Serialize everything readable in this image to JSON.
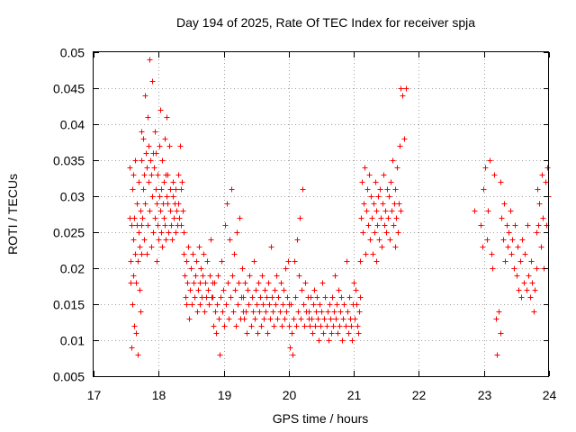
{
  "chart_data": {
    "type": "scatter",
    "title": "Day 194 of 2025, Rate Of TEC Index for receiver spja",
    "xlabel": "GPS time / hours",
    "ylabel": "ROTI / TECUs",
    "xlim": [
      17,
      24
    ],
    "ylim": [
      0.005,
      0.05
    ],
    "grid": true,
    "marker": "+",
    "color": "#ff0000",
    "xticks": [
      "17",
      "18",
      "19",
      "20",
      "21",
      "22",
      "23",
      "24"
    ],
    "yticks": [
      "0.005",
      "0.01",
      "0.015",
      "0.02",
      "0.025",
      "0.03",
      "0.035",
      "0.04",
      "0.045",
      "0.05"
    ],
    "segments": [
      {
        "x_start": 17.55,
        "x_end": 17.74,
        "y": [
          0.027,
          0.034,
          0.021,
          0.018,
          0.009,
          0.026,
          0.031,
          0.015,
          0.024,
          0.033,
          0.019,
          0.012,
          0.027,
          0.022,
          0.035,
          0.018,
          0.011,
          0.026,
          0.029,
          0.021,
          0.008,
          0.025,
          0.032,
          0.017,
          0.023,
          0.028,
          0.014,
          0.026,
          0.039,
          0.022
        ]
      },
      {
        "x_start": 17.74,
        "x_end": 18.12,
        "y": [
          0.035,
          0.027,
          0.031,
          0.038,
          0.024,
          0.033,
          0.044,
          0.029,
          0.036,
          0.022,
          0.034,
          0.041,
          0.026,
          0.032,
          0.037,
          0.049,
          0.028,
          0.035,
          0.033,
          0.023,
          0.03,
          0.046,
          0.036,
          0.025,
          0.034,
          0.039,
          0.027,
          0.031,
          0.036,
          0.021,
          0.029,
          0.033,
          0.026,
          0.024,
          0.037,
          0.03,
          0.028,
          0.042,
          0.025,
          0.031,
          0.035,
          0.023,
          0.029,
          0.032,
          0.027,
          0.038,
          0.026,
          0.033,
          0.024,
          0.03
        ]
      },
      {
        "x_start": 18.12,
        "x_end": 18.38,
        "y": [
          0.041,
          0.029,
          0.033,
          0.025,
          0.037,
          0.028,
          0.031,
          0.026,
          0.024,
          0.03,
          0.032,
          0.027,
          0.029,
          0.025,
          0.031,
          0.028,
          0.026,
          0.033,
          0.029,
          0.027,
          0.037,
          0.031,
          0.026,
          0.032,
          0.028,
          0.025
        ]
      },
      {
        "x_start": 18.38,
        "x_end": 18.82,
        "y": [
          0.022,
          0.019,
          0.016,
          0.021,
          0.015,
          0.018,
          0.023,
          0.013,
          0.017,
          0.02,
          0.015,
          0.022,
          0.018,
          0.016,
          0.019,
          0.021,
          0.014,
          0.017,
          0.023,
          0.015,
          0.018,
          0.02,
          0.016,
          0.019,
          0.022,
          0.014,
          0.018,
          0.016,
          0.021,
          0.017,
          0.015,
          0.019,
          0.024,
          0.016,
          0.018
        ]
      },
      {
        "x_start": 18.82,
        "x_end": 19.3,
        "y": [
          0.016,
          0.012,
          0.018,
          0.014,
          0.011,
          0.015,
          0.019,
          0.013,
          0.008,
          0.016,
          0.021,
          0.014,
          0.017,
          0.012,
          0.026,
          0.015,
          0.029,
          0.018,
          0.013,
          0.024,
          0.016,
          0.031,
          0.019,
          0.014,
          0.022,
          0.017,
          0.012,
          0.025,
          0.015,
          0.018,
          0.027,
          0.013,
          0.016,
          0.02,
          0.014
        ]
      },
      {
        "x_start": 19.3,
        "x_end": 20.0,
        "y": [
          0.016,
          0.013,
          0.018,
          0.014,
          0.011,
          0.017,
          0.015,
          0.019,
          0.012,
          0.016,
          0.014,
          0.021,
          0.013,
          0.017,
          0.015,
          0.011,
          0.018,
          0.014,
          0.016,
          0.012,
          0.019,
          0.015,
          0.013,
          0.017,
          0.014,
          0.016,
          0.011,
          0.018,
          0.015,
          0.013,
          0.023,
          0.016,
          0.014,
          0.012,
          0.017,
          0.015,
          0.019,
          0.013,
          0.016,
          0.014,
          0.018,
          0.012,
          0.015,
          0.017,
          0.013,
          0.02,
          0.014,
          0.016,
          0.021,
          0.015
        ]
      },
      {
        "x_start": 20.0,
        "x_end": 20.3,
        "y": [
          0.012,
          0.009,
          0.015,
          0.011,
          0.008,
          0.013,
          0.021,
          0.016,
          0.012,
          0.024,
          0.014,
          0.019,
          0.027,
          0.013,
          0.017,
          0.031,
          0.015,
          0.012,
          0.018,
          0.014,
          0.016,
          0.013
        ]
      },
      {
        "x_start": 20.3,
        "x_end": 21.1,
        "y": [
          0.014,
          0.012,
          0.016,
          0.013,
          0.011,
          0.015,
          0.017,
          0.012,
          0.014,
          0.016,
          0.013,
          0.01,
          0.015,
          0.012,
          0.014,
          0.018,
          0.011,
          0.013,
          0.016,
          0.012,
          0.014,
          0.01,
          0.015,
          0.013,
          0.011,
          0.016,
          0.012,
          0.014,
          0.019,
          0.013,
          0.015,
          0.011,
          0.017,
          0.012,
          0.014,
          0.016,
          0.01,
          0.013,
          0.015,
          0.012,
          0.021,
          0.014,
          0.011,
          0.016,
          0.013,
          0.012,
          0.01,
          0.015,
          0.018,
          0.013,
          0.017,
          0.015,
          0.012,
          0.011,
          0.014,
          0.016
        ]
      },
      {
        "x_start": 21.1,
        "x_end": 21.72,
        "y": [
          0.021,
          0.027,
          0.032,
          0.025,
          0.029,
          0.034,
          0.022,
          0.028,
          0.031,
          0.026,
          0.033,
          0.024,
          0.03,
          0.027,
          0.022,
          0.029,
          0.025,
          0.032,
          0.028,
          0.021,
          0.026,
          0.03,
          0.024,
          0.031,
          0.027,
          0.023,
          0.029,
          0.033,
          0.026,
          0.028,
          0.025,
          0.031,
          0.027,
          0.03,
          0.024,
          0.032,
          0.028,
          0.035,
          0.026,
          0.029,
          0.023,
          0.031,
          0.027,
          0.034,
          0.025,
          0.029,
          0.037,
          0.028
        ]
      },
      {
        "x_start": 21.72,
        "x_end": 21.8,
        "y": [
          0.045,
          0.044,
          0.038,
          0.045
        ]
      },
      {
        "x_start": 22.85,
        "x_end": 22.85,
        "y": [
          0.028
        ]
      },
      {
        "x_start": 22.95,
        "x_end": 23.25,
        "y": [
          0.026,
          0.023,
          0.031,
          0.034,
          0.024,
          0.028,
          0.035,
          0.022,
          0.02,
          0.033,
          0.013,
          0.008,
          0.014,
          0.011
        ]
      },
      {
        "x_start": 23.25,
        "x_end": 23.8,
        "y": [
          0.032,
          0.027,
          0.024,
          0.029,
          0.021,
          0.026,
          0.023,
          0.025,
          0.028,
          0.022,
          0.024,
          0.02,
          0.026,
          0.019,
          0.023,
          0.017,
          0.021,
          0.016,
          0.024,
          0.018,
          0.022,
          0.017,
          0.026,
          0.019,
          0.016,
          0.021,
          0.018,
          0.014,
          0.017,
          0.02
        ]
      },
      {
        "x_start": 23.8,
        "x_end": 23.99,
        "y": [
          0.025,
          0.031,
          0.026,
          0.029,
          0.023,
          0.033,
          0.027,
          0.02,
          0.032,
          0.026,
          0.034,
          0.03
        ]
      }
    ]
  }
}
